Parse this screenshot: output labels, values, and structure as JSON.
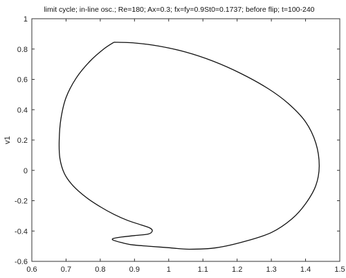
{
  "chart_data": {
    "type": "line",
    "title": "limit cycle; in-line osc.; Re=180; Ax=0.3; fx=fy=0.9St0=0.1737; before flip; t=100-240",
    "xlabel": "",
    "ylabel": "v1",
    "xlim": [
      0.6,
      1.5
    ],
    "ylim": [
      -0.6,
      1.0
    ],
    "x_ticks": [
      0.6,
      0.7,
      0.8,
      0.9,
      1.0,
      1.1,
      1.2,
      1.3,
      1.4,
      1.5
    ],
    "x_tick_labels": [
      "0.6",
      "0.7",
      "0.8",
      "0.9",
      "1",
      "1.1",
      "1.2",
      "1.3",
      "1.4",
      "1.5"
    ],
    "y_ticks": [
      -0.6,
      -0.4,
      -0.2,
      0.0,
      0.2,
      0.4,
      0.6,
      0.8,
      1.0
    ],
    "y_tick_labels": [
      "-0.6",
      "-0.4",
      "-0.2",
      "0",
      "0.2",
      "0.4",
      "0.6",
      "0.8",
      "1"
    ],
    "grid": false,
    "colors": {
      "line": "#111111",
      "axes": "#333333"
    },
    "series": [
      {
        "x": [
          0.84,
          0.9,
          0.97,
          1.05,
          1.13,
          1.21,
          1.29,
          1.35,
          1.4,
          1.43,
          1.44,
          1.43,
          1.4,
          1.36,
          1.3,
          1.22,
          1.14,
          1.06,
          1.0,
          0.94,
          0.89,
          0.86,
          0.84,
          0.835,
          0.84,
          0.86,
          0.9,
          0.94,
          0.952,
          0.945,
          0.92,
          0.88,
          0.84,
          0.8,
          0.76,
          0.72,
          0.695,
          0.682,
          0.68,
          0.685,
          0.7,
          0.73,
          0.77,
          0.81,
          0.84
        ],
        "y": [
          0.845,
          0.84,
          0.82,
          0.78,
          0.72,
          0.64,
          0.54,
          0.44,
          0.32,
          0.18,
          0.03,
          -0.1,
          -0.22,
          -0.32,
          -0.41,
          -0.47,
          -0.51,
          -0.52,
          -0.51,
          -0.5,
          -0.49,
          -0.475,
          -0.462,
          -0.455,
          -0.448,
          -0.44,
          -0.43,
          -0.42,
          -0.4,
          -0.38,
          -0.36,
          -0.33,
          -0.29,
          -0.24,
          -0.18,
          -0.1,
          -0.02,
          0.08,
          0.2,
          0.34,
          0.48,
          0.61,
          0.72,
          0.8,
          0.845
        ]
      }
    ]
  }
}
